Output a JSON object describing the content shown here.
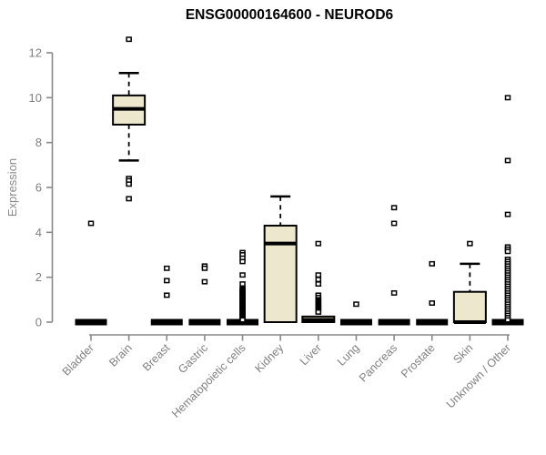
{
  "chart_data": {
    "type": "boxplot",
    "title": "ENSG00000164600 - NEUROD6",
    "ylabel": "Expression",
    "xlabel": "",
    "ylim": [
      0,
      12
    ],
    "yticks": [
      0,
      2,
      4,
      6,
      8,
      10,
      12
    ],
    "grid": false,
    "legend": "none",
    "box_fill": "#EDE8CD",
    "box_stroke": "#000000",
    "axis_color": "#888888",
    "axis_text_color": "#808080",
    "categories": [
      "Bladder",
      "Brain",
      "Breast",
      "Gastric",
      "Hematopoietic cells",
      "Kidney",
      "Liver",
      "Lung",
      "Pancreas",
      "Prostate",
      "Skin",
      "Unknown / Other"
    ],
    "boxes": [
      {
        "category": "Bladder",
        "whisker_low": 0,
        "q1": 0,
        "median": 0,
        "q3": 0,
        "whisker_high": 0,
        "outliers": [
          4.4
        ]
      },
      {
        "category": "Brain",
        "whisker_low": 7.2,
        "q1": 8.8,
        "median": 9.5,
        "q3": 10.1,
        "whisker_high": 11.1,
        "outliers": [
          12.6,
          6.4,
          6.3,
          6.15,
          5.5
        ]
      },
      {
        "category": "Breast",
        "whisker_low": 0,
        "q1": 0,
        "median": 0,
        "q3": 0,
        "whisker_high": 0,
        "outliers": [
          2.4,
          1.85,
          1.2
        ]
      },
      {
        "category": "Gastric",
        "whisker_low": 0,
        "q1": 0,
        "median": 0,
        "q3": 0,
        "whisker_high": 0,
        "outliers": [
          2.5,
          2.4,
          1.8
        ]
      },
      {
        "category": "Hematopoietic cells",
        "whisker_low": 0,
        "q1": 0,
        "median": 0,
        "q3": 0,
        "whisker_high": 0,
        "outliers": [
          3.1,
          3.0,
          2.85,
          2.7,
          2.1,
          1.7,
          1.5,
          1.45,
          1.4,
          1.35,
          1.3,
          1.25,
          1.2,
          1.15,
          1.1,
          1.05,
          1.0,
          0.95,
          0.9,
          0.85,
          0.8,
          0.75,
          0.7,
          0.65,
          0.6,
          0.55,
          0.5,
          0.45,
          0.4,
          0.35,
          0.3,
          0.25,
          0.2,
          0.15,
          0.1
        ]
      },
      {
        "category": "Kidney",
        "whisker_low": 0,
        "q1": 0,
        "median": 3.5,
        "q3": 4.3,
        "whisker_high": 5.6,
        "outliers": []
      },
      {
        "category": "Liver",
        "whisker_low": 0,
        "q1": 0,
        "median": 0.1,
        "q3": 0.25,
        "whisker_high": 0.25,
        "outliers": [
          3.5,
          2.1,
          1.9,
          1.7,
          1.2,
          1.1,
          1.0,
          0.95,
          0.9,
          0.85,
          0.8,
          0.75,
          0.7,
          0.65,
          0.6,
          0.55,
          0.5,
          0.45
        ]
      },
      {
        "category": "Lung",
        "whisker_low": 0,
        "q1": 0,
        "median": 0,
        "q3": 0,
        "whisker_high": 0,
        "outliers": [
          0.8
        ]
      },
      {
        "category": "Pancreas",
        "whisker_low": 0,
        "q1": 0,
        "median": 0,
        "q3": 0,
        "whisker_high": 0,
        "outliers": [
          5.1,
          4.4,
          1.3
        ]
      },
      {
        "category": "Prostate",
        "whisker_low": 0,
        "q1": 0,
        "median": 0,
        "q3": 0,
        "whisker_high": 0,
        "outliers": [
          2.6,
          0.85
        ]
      },
      {
        "category": "Skin",
        "whisker_low": 0,
        "q1": 0,
        "median": 0,
        "q3": 1.35,
        "whisker_high": 2.6,
        "outliers": [
          3.5
        ]
      },
      {
        "category": "Unknown / Other",
        "whisker_low": 0,
        "q1": 0,
        "median": 0,
        "q3": 0,
        "whisker_high": 0,
        "outliers": [
          10.0,
          7.2,
          4.8,
          3.35,
          3.25,
          3.15,
          2.8,
          2.7,
          2.6,
          2.5,
          2.4,
          2.3,
          2.2,
          2.1,
          2.0,
          1.9,
          1.8,
          1.7,
          1.6,
          1.5,
          1.4,
          1.3,
          1.2,
          1.1,
          1.0,
          0.9,
          0.8,
          0.7,
          0.6,
          0.5,
          0.4,
          0.3,
          0.2,
          0.1
        ]
      }
    ]
  }
}
